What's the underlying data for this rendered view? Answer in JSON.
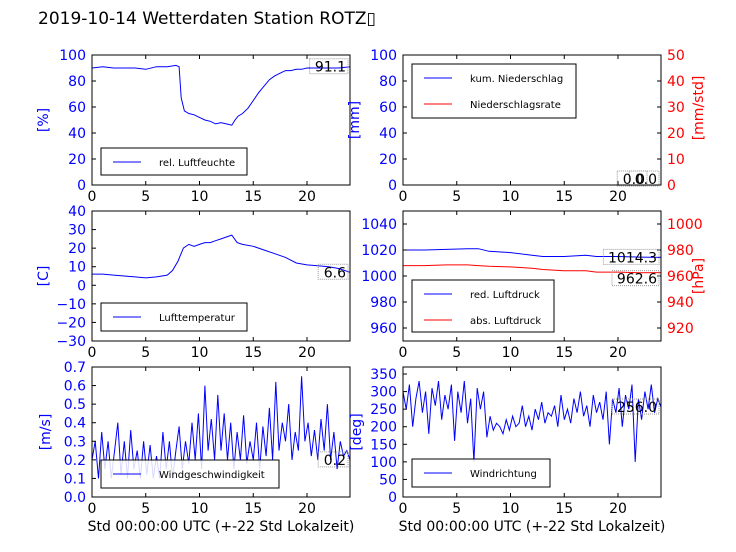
{
  "page": {
    "title": "2019-10-14 Wetterdaten Station ROTZ▯"
  },
  "colors": {
    "blue": "#0000ff",
    "red": "#ff0000",
    "black": "#000000"
  },
  "chart_data": [
    {
      "id": "humidity",
      "type": "line",
      "xlim": [
        0,
        24
      ],
      "ylim": [
        0,
        100
      ],
      "xticks": [
        "0",
        "5",
        "10",
        "15",
        "20"
      ],
      "yticks": [
        "0",
        "20",
        "40",
        "60",
        "80",
        "100"
      ],
      "ylabel": "[%]",
      "ylabel_color": "#0000ff",
      "last_value": "91.1",
      "legend_position": "lower-center",
      "series": [
        {
          "name": "rel. Luftfeuchte",
          "color": "#0000ff",
          "x": [
            0,
            1,
            2,
            3,
            4,
            5,
            6,
            7,
            7.8,
            8.1,
            8.3,
            8.6,
            9,
            9.5,
            10,
            10.5,
            11,
            11.5,
            12,
            12.5,
            13,
            13.3,
            13.6,
            14,
            14.5,
            15,
            15.5,
            16,
            16.5,
            17,
            17.5,
            18,
            18.5,
            19,
            19.5,
            20,
            21,
            22,
            23,
            24
          ],
          "y": [
            90,
            91,
            90,
            90,
            90,
            89,
            91,
            91,
            92,
            91,
            67,
            57,
            55,
            54,
            52,
            50,
            49,
            47,
            48,
            47,
            46,
            50,
            53,
            55,
            59,
            65,
            71,
            76,
            81,
            84,
            86,
            88,
            88,
            89,
            89,
            90,
            90,
            90,
            90,
            91
          ]
        }
      ]
    },
    {
      "id": "precip",
      "type": "line",
      "xlim": [
        0,
        24
      ],
      "ylim": [
        0,
        100
      ],
      "y2lim": [
        0,
        50
      ],
      "xticks": [
        "0",
        "5",
        "10",
        "15",
        "20"
      ],
      "yticks": [
        "0",
        "20",
        "40",
        "60",
        "80",
        "100"
      ],
      "y2ticks": [
        "0",
        "10",
        "20",
        "30",
        "40",
        "50"
      ],
      "ylabel": "[mm]",
      "ylabel_color": "#0000ff",
      "y2label": "[mm/std]",
      "y2label_color": "#ff0000",
      "last_value": "0.0",
      "last_value2": "0.0",
      "legend_position": "upper-left",
      "series": [
        {
          "name": "kum. Niederschlag",
          "color": "#0000ff",
          "axis": "y",
          "x": [
            0,
            24
          ],
          "y": [
            0,
            0
          ]
        },
        {
          "name": "Niederschlagsrate",
          "color": "#ff0000",
          "axis": "y2",
          "x": [
            0,
            24
          ],
          "y": [
            0,
            0
          ]
        }
      ]
    },
    {
      "id": "temp",
      "type": "line",
      "xlim": [
        0,
        24
      ],
      "ylim": [
        -30,
        40
      ],
      "xticks": [
        "0",
        "5",
        "10",
        "15",
        "20"
      ],
      "yticks": [
        "−30",
        "−20",
        "−10",
        "0",
        "10",
        "20",
        "30",
        "40"
      ],
      "ylabel": "[C]",
      "ylabel_color": "#0000ff",
      "last_value": "6.6",
      "legend_position": "lower-center",
      "series": [
        {
          "name": "Lufttemperatur",
          "color": "#0000ff",
          "x": [
            0,
            1,
            2,
            3,
            4,
            5,
            6,
            7,
            7.5,
            8,
            8.5,
            9,
            9.5,
            10,
            10.5,
            11,
            11.5,
            12,
            12.5,
            13,
            13.5,
            14,
            15,
            16,
            17,
            18,
            19,
            20,
            21,
            22,
            23,
            24
          ],
          "y": [
            6,
            6,
            5.5,
            5,
            4.5,
            4,
            4.5,
            5.5,
            8,
            13,
            20,
            22,
            21,
            22,
            23,
            23,
            24,
            25,
            26,
            27,
            23,
            22,
            21,
            19,
            17,
            15,
            12,
            11,
            10.5,
            10,
            9,
            7
          ]
        }
      ]
    },
    {
      "id": "pressure",
      "type": "line",
      "xlim": [
        0,
        24
      ],
      "ylim": [
        950,
        1050
      ],
      "y2lim": [
        910,
        1010
      ],
      "xticks": [
        "0",
        "5",
        "10",
        "15",
        "20"
      ],
      "yticks": [
        "960",
        "980",
        "1000",
        "1020",
        "1040"
      ],
      "y2ticks": [
        "920",
        "940",
        "960",
        "980",
        "1000"
      ],
      "ylabel": "",
      "y2label": "[hPa]",
      "y2label_color": "#ff0000",
      "last_value": "1014.3",
      "last_value2": "962.6",
      "legend_position": "lower-left",
      "series": [
        {
          "name": "red. Luftdruck",
          "color": "#0000ff",
          "axis": "y",
          "x": [
            0,
            2,
            4,
            6,
            7,
            8,
            10,
            12,
            13,
            15,
            17,
            18,
            20,
            22,
            24
          ],
          "y": [
            1020,
            1020,
            1020.5,
            1021,
            1021,
            1019,
            1018,
            1016,
            1015,
            1015,
            1016,
            1015,
            1015,
            1014.5,
            1014.3
          ]
        },
        {
          "name": "abs. Luftdruck",
          "color": "#ff0000",
          "axis": "y2",
          "x": [
            0,
            2,
            4,
            6,
            7,
            8,
            10,
            12,
            13,
            15,
            17,
            18,
            20,
            22,
            24
          ],
          "y": [
            968,
            968,
            968.5,
            968.5,
            968,
            967.5,
            967,
            966,
            965,
            964,
            964,
            963,
            963,
            962.5,
            962.6
          ]
        }
      ]
    },
    {
      "id": "wind",
      "type": "line",
      "xlim": [
        0,
        24
      ],
      "ylim": [
        0,
        0.7
      ],
      "xticks": [
        "0",
        "5",
        "10",
        "15",
        "20"
      ],
      "yticks": [
        "0.0",
        "0.1",
        "0.2",
        "0.3",
        "0.4",
        "0.5",
        "0.6",
        "0.7"
      ],
      "ylabel": "[m/s]",
      "ylabel_color": "#0000ff",
      "xlabel": "Std 00:00:00 UTC (+-22 Std Lokalzeit)",
      "last_value": "0.2",
      "legend_position": "lower-center",
      "series": [
        {
          "name": "Windgeschwindigkeit",
          "color": "#0000ff",
          "x": [
            0,
            0.3,
            0.6,
            0.9,
            1.2,
            1.5,
            1.8,
            2.1,
            2.4,
            2.7,
            3,
            3.3,
            3.6,
            3.9,
            4.2,
            4.5,
            4.8,
            5.1,
            5.4,
            5.7,
            6,
            6.3,
            6.6,
            6.9,
            7.2,
            7.5,
            7.8,
            8.1,
            8.4,
            8.7,
            9,
            9.3,
            9.6,
            9.9,
            10.2,
            10.5,
            10.8,
            11.1,
            11.4,
            11.7,
            12,
            12.3,
            12.6,
            12.9,
            13.2,
            13.5,
            13.8,
            14.1,
            14.4,
            14.7,
            15,
            15.3,
            15.6,
            15.9,
            16.2,
            16.5,
            16.8,
            17.1,
            17.4,
            17.7,
            18,
            18.3,
            18.6,
            18.9,
            19.2,
            19.5,
            19.8,
            20.1,
            20.4,
            20.7,
            21,
            21.3,
            21.6,
            21.9,
            22.2,
            22.5,
            22.8,
            23.1,
            23.4,
            23.7,
            24
          ],
          "y": [
            0.2,
            0.3,
            0.1,
            0.35,
            0.15,
            0.3,
            0.1,
            0.25,
            0.4,
            0.12,
            0.3,
            0.1,
            0.36,
            0.15,
            0.25,
            0.1,
            0.3,
            0.12,
            0.28,
            0.1,
            0.22,
            0.1,
            0.35,
            0.15,
            0.3,
            0.1,
            0.25,
            0.38,
            0.15,
            0.3,
            0.18,
            0.4,
            0.2,
            0.45,
            0.15,
            0.6,
            0.25,
            0.42,
            0.2,
            0.55,
            0.25,
            0.45,
            0.2,
            0.4,
            0.15,
            0.35,
            0.2,
            0.44,
            0.18,
            0.3,
            0.2,
            0.4,
            0.15,
            0.38,
            0.22,
            0.48,
            0.2,
            0.62,
            0.25,
            0.4,
            0.3,
            0.5,
            0.2,
            0.35,
            0.25,
            0.65,
            0.3,
            0.4,
            0.22,
            0.36,
            0.2,
            0.42,
            0.25,
            0.5,
            0.2,
            0.35,
            0.15,
            0.3,
            0.22,
            0.25,
            0.2
          ]
        }
      ]
    },
    {
      "id": "winddir",
      "type": "line",
      "xlim": [
        0,
        24
      ],
      "ylim": [
        0,
        370
      ],
      "xticks": [
        "0",
        "5",
        "10",
        "15",
        "20"
      ],
      "yticks": [
        "0",
        "50",
        "100",
        "150",
        "200",
        "250",
        "300",
        "350"
      ],
      "ylabel": "[deg]",
      "ylabel_color": "#0000ff",
      "xlabel": "Std 00:00:00 UTC (+-22 Std Lokalzeit)",
      "last_value": "256.0",
      "legend_position": "lower-left",
      "series": [
        {
          "name": "Windrichtung",
          "color": "#0000ff",
          "x": [
            0,
            0.3,
            0.6,
            0.9,
            1.2,
            1.5,
            1.8,
            2.1,
            2.4,
            2.7,
            3,
            3.3,
            3.6,
            3.9,
            4.2,
            4.5,
            4.8,
            5.1,
            5.4,
            5.7,
            6,
            6.3,
            6.6,
            6.9,
            7.2,
            7.5,
            7.8,
            8.1,
            8.4,
            8.7,
            9,
            9.3,
            9.6,
            9.9,
            10.2,
            10.5,
            10.8,
            11.1,
            11.4,
            11.7,
            12,
            12.3,
            12.6,
            12.9,
            13.2,
            13.5,
            13.8,
            14.1,
            14.4,
            14.7,
            15,
            15.3,
            15.6,
            15.9,
            16.2,
            16.5,
            16.8,
            17.1,
            17.4,
            17.7,
            18,
            18.3,
            18.6,
            18.9,
            19.2,
            19.5,
            19.8,
            20.1,
            20.4,
            20.7,
            21,
            21.3,
            21.6,
            21.9,
            22.2,
            22.5,
            22.8,
            23.1,
            23.4,
            23.7,
            24
          ],
          "y": [
            300,
            250,
            320,
            200,
            280,
            330,
            240,
            300,
            180,
            310,
            260,
            330,
            220,
            290,
            250,
            320,
            160,
            300,
            240,
            330,
            210,
            280,
            100,
            310,
            250,
            300,
            170,
            230,
            190,
            210,
            200,
            180,
            220,
            190,
            230,
            200,
            210,
            260,
            200,
            230,
            190,
            250,
            220,
            270,
            210,
            240,
            230,
            260,
            200,
            290,
            220,
            250,
            210,
            280,
            240,
            300,
            230,
            260,
            200,
            290,
            240,
            270,
            220,
            300,
            150,
            280,
            240,
            310,
            200,
            290,
            250,
            320,
            100,
            280,
            220,
            300,
            250,
            320,
            240,
            280,
            256
          ]
        }
      ]
    }
  ]
}
